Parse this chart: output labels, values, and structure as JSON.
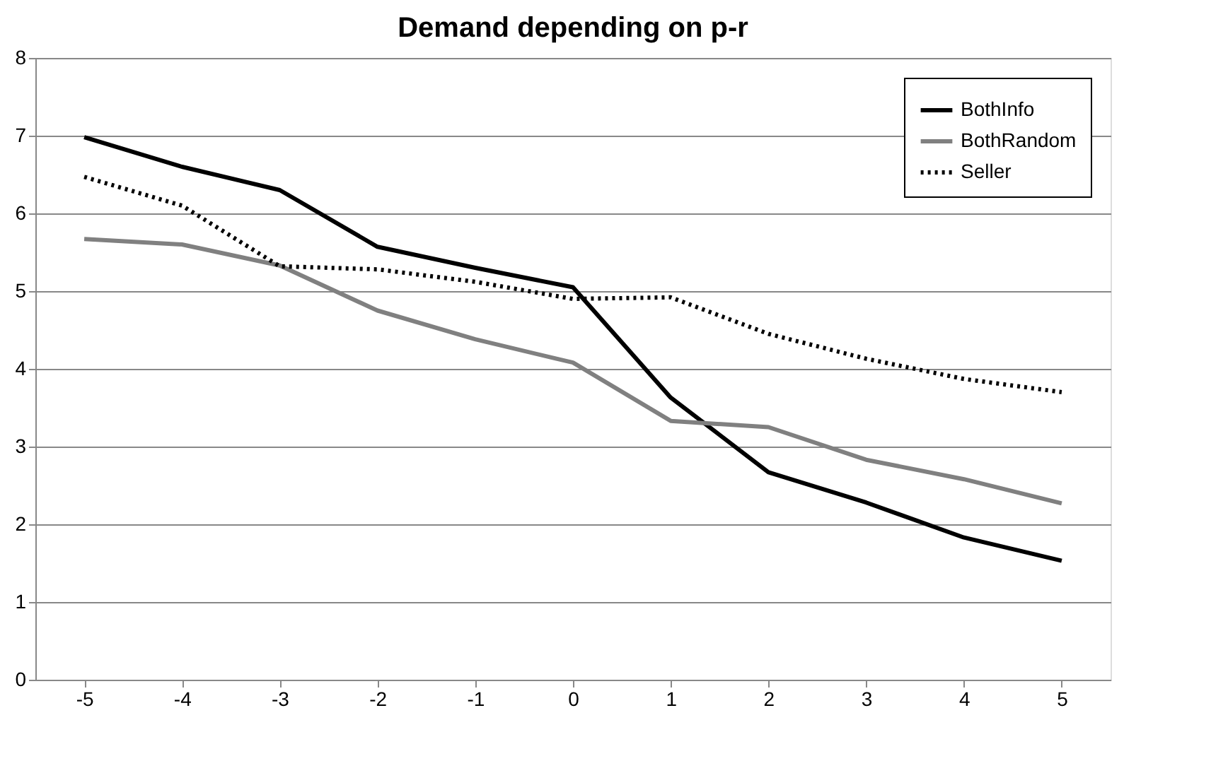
{
  "chart_data": {
    "type": "line",
    "title": "Demand depending on p-r",
    "categories": [
      "-5",
      "-4",
      "-3",
      "-2",
      "-1",
      "0",
      "1",
      "2",
      "3",
      "4",
      "5"
    ],
    "series": [
      {
        "name": "BothInfo",
        "color": "#000000",
        "line_style": "solid",
        "values": [
          6.98,
          6.6,
          6.3,
          5.57,
          5.3,
          5.05,
          3.63,
          2.67,
          2.28,
          1.83,
          1.53
        ]
      },
      {
        "name": "BothRandom",
        "color": "#808080",
        "line_style": "solid",
        "values": [
          5.67,
          5.6,
          5.33,
          4.75,
          4.38,
          4.08,
          3.33,
          3.25,
          2.83,
          2.58,
          2.27
        ]
      },
      {
        "name": "Seller",
        "color": "#000000",
        "line_style": "dotted",
        "values": [
          6.47,
          6.1,
          5.32,
          5.28,
          5.12,
          4.9,
          4.92,
          4.45,
          4.13,
          3.87,
          3.7
        ]
      }
    ],
    "ylim": [
      0,
      8
    ],
    "yticks": [
      0,
      1,
      2,
      3,
      4,
      5,
      6,
      7,
      8
    ],
    "grid": "y",
    "legend": "top right",
    "marker": "none"
  }
}
